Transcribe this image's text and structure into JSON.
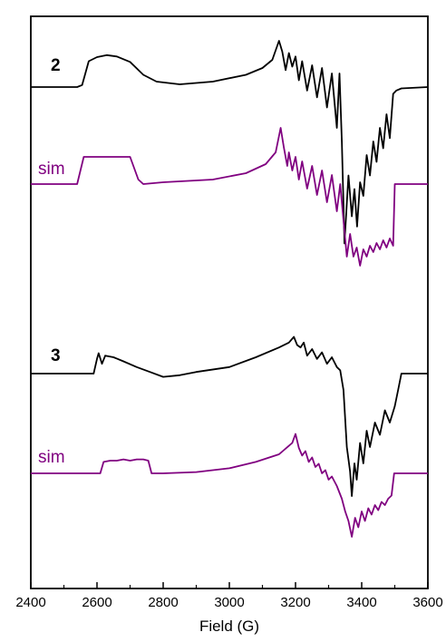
{
  "chart_data": {
    "type": "line",
    "title": "",
    "xlabel": "Field (G)",
    "ylabel": "",
    "xlim": [
      2400,
      3600
    ],
    "x_ticks": [
      2400,
      2600,
      2800,
      3000,
      3200,
      3400,
      3600
    ],
    "y_ticks_shown": false,
    "grid": false,
    "legend": "none",
    "colors": {
      "experimental": "#000000",
      "simulation": "#800080",
      "axis": "#000000"
    },
    "series": [
      {
        "label": "2",
        "style": "experimental",
        "points": [
          [
            2400,
            0
          ],
          [
            2540,
            0
          ],
          [
            2555,
            3
          ],
          [
            2575,
            38
          ],
          [
            2600,
            44
          ],
          [
            2630,
            47
          ],
          [
            2660,
            45
          ],
          [
            2700,
            37
          ],
          [
            2740,
            18
          ],
          [
            2780,
            8
          ],
          [
            2850,
            4
          ],
          [
            2950,
            8
          ],
          [
            3050,
            18
          ],
          [
            3100,
            28
          ],
          [
            3130,
            40
          ],
          [
            3150,
            68
          ],
          [
            3160,
            52
          ],
          [
            3170,
            25
          ],
          [
            3180,
            50
          ],
          [
            3190,
            30
          ],
          [
            3200,
            45
          ],
          [
            3210,
            10
          ],
          [
            3220,
            38
          ],
          [
            3235,
            -5
          ],
          [
            3250,
            32
          ],
          [
            3265,
            -15
          ],
          [
            3280,
            28
          ],
          [
            3295,
            -30
          ],
          [
            3310,
            20
          ],
          [
            3325,
            -60
          ],
          [
            3333,
            20
          ],
          [
            3340,
            -80
          ],
          [
            3348,
            -230
          ],
          [
            3360,
            -130
          ],
          [
            3370,
            -190
          ],
          [
            3378,
            -150
          ],
          [
            3386,
            -205
          ],
          [
            3395,
            -140
          ],
          [
            3405,
            -160
          ],
          [
            3415,
            -100
          ],
          [
            3425,
            -130
          ],
          [
            3435,
            -80
          ],
          [
            3445,
            -110
          ],
          [
            3455,
            -60
          ],
          [
            3465,
            -90
          ],
          [
            3475,
            -40
          ],
          [
            3485,
            -75
          ],
          [
            3495,
            -10
          ],
          [
            3505,
            -5
          ],
          [
            3520,
            -2
          ],
          [
            3600,
            0
          ]
        ]
      },
      {
        "label": "sim",
        "style": "simulation",
        "points": [
          [
            2400,
            0
          ],
          [
            2540,
            0
          ],
          [
            2560,
            30
          ],
          [
            2590,
            30
          ],
          [
            2680,
            30
          ],
          [
            2700,
            30
          ],
          [
            2725,
            5
          ],
          [
            2740,
            0
          ],
          [
            2800,
            2
          ],
          [
            2950,
            5
          ],
          [
            3050,
            12
          ],
          [
            3110,
            22
          ],
          [
            3140,
            35
          ],
          [
            3155,
            62
          ],
          [
            3165,
            40
          ],
          [
            3175,
            20
          ],
          [
            3180,
            35
          ],
          [
            3190,
            15
          ],
          [
            3200,
            30
          ],
          [
            3210,
            5
          ],
          [
            3220,
            25
          ],
          [
            3235,
            -5
          ],
          [
            3250,
            20
          ],
          [
            3265,
            -12
          ],
          [
            3280,
            15
          ],
          [
            3295,
            -20
          ],
          [
            3310,
            10
          ],
          [
            3325,
            -30
          ],
          [
            3335,
            0
          ],
          [
            3345,
            -40
          ],
          [
            3355,
            -80
          ],
          [
            3365,
            -55
          ],
          [
            3375,
            -80
          ],
          [
            3385,
            -70
          ],
          [
            3395,
            -90
          ],
          [
            3405,
            -72
          ],
          [
            3415,
            -80
          ],
          [
            3425,
            -68
          ],
          [
            3435,
            -75
          ],
          [
            3445,
            -65
          ],
          [
            3455,
            -72
          ],
          [
            3465,
            -62
          ],
          [
            3475,
            -70
          ],
          [
            3485,
            -60
          ],
          [
            3495,
            -68
          ],
          [
            3500,
            0
          ],
          [
            3600,
            0
          ]
        ]
      },
      {
        "label": "3",
        "style": "experimental",
        "points": [
          [
            2400,
            0
          ],
          [
            2590,
            0
          ],
          [
            2600,
            18
          ],
          [
            2605,
            25
          ],
          [
            2615,
            12
          ],
          [
            2625,
            22
          ],
          [
            2650,
            20
          ],
          [
            2680,
            15
          ],
          [
            2720,
            8
          ],
          [
            2760,
            2
          ],
          [
            2800,
            -4
          ],
          [
            2850,
            -2
          ],
          [
            2900,
            2
          ],
          [
            3000,
            8
          ],
          [
            3080,
            20
          ],
          [
            3150,
            32
          ],
          [
            3180,
            38
          ],
          [
            3195,
            45
          ],
          [
            3205,
            35
          ],
          [
            3215,
            32
          ],
          [
            3225,
            38
          ],
          [
            3235,
            22
          ],
          [
            3250,
            30
          ],
          [
            3265,
            18
          ],
          [
            3280,
            26
          ],
          [
            3295,
            12
          ],
          [
            3310,
            20
          ],
          [
            3325,
            8
          ],
          [
            3335,
            4
          ],
          [
            3345,
            -20
          ],
          [
            3355,
            -90
          ],
          [
            3365,
            -120
          ],
          [
            3370,
            -150
          ],
          [
            3378,
            -110
          ],
          [
            3385,
            -130
          ],
          [
            3395,
            -85
          ],
          [
            3405,
            -110
          ],
          [
            3415,
            -70
          ],
          [
            3425,
            -90
          ],
          [
            3440,
            -60
          ],
          [
            3455,
            -75
          ],
          [
            3470,
            -45
          ],
          [
            3485,
            -60
          ],
          [
            3500,
            -40
          ],
          [
            3510,
            -20
          ],
          [
            3520,
            0
          ],
          [
            3600,
            0
          ]
        ]
      },
      {
        "label": "sim",
        "style": "simulation",
        "points": [
          [
            2400,
            0
          ],
          [
            2610,
            0
          ],
          [
            2620,
            18
          ],
          [
            2640,
            20
          ],
          [
            2660,
            20
          ],
          [
            2680,
            22
          ],
          [
            2700,
            20
          ],
          [
            2720,
            22
          ],
          [
            2740,
            22
          ],
          [
            2755,
            20
          ],
          [
            2765,
            0
          ],
          [
            2800,
            0
          ],
          [
            2900,
            2
          ],
          [
            3000,
            8
          ],
          [
            3080,
            18
          ],
          [
            3150,
            30
          ],
          [
            3190,
            48
          ],
          [
            3200,
            62
          ],
          [
            3210,
            40
          ],
          [
            3220,
            28
          ],
          [
            3230,
            35
          ],
          [
            3240,
            18
          ],
          [
            3250,
            25
          ],
          [
            3260,
            10
          ],
          [
            3270,
            15
          ],
          [
            3280,
            0
          ],
          [
            3290,
            5
          ],
          [
            3300,
            -10
          ],
          [
            3310,
            -5
          ],
          [
            3325,
            -20
          ],
          [
            3340,
            -40
          ],
          [
            3350,
            -60
          ],
          [
            3360,
            -75
          ],
          [
            3370,
            -100
          ],
          [
            3380,
            -70
          ],
          [
            3390,
            -85
          ],
          [
            3400,
            -60
          ],
          [
            3410,
            -75
          ],
          [
            3420,
            -55
          ],
          [
            3430,
            -65
          ],
          [
            3440,
            -50
          ],
          [
            3450,
            -58
          ],
          [
            3460,
            -45
          ],
          [
            3470,
            -50
          ],
          [
            3480,
            -40
          ],
          [
            3490,
            -35
          ],
          [
            3498,
            0
          ],
          [
            3600,
            0
          ]
        ]
      }
    ],
    "annotations": [
      "2",
      "sim",
      "3",
      "sim"
    ]
  }
}
